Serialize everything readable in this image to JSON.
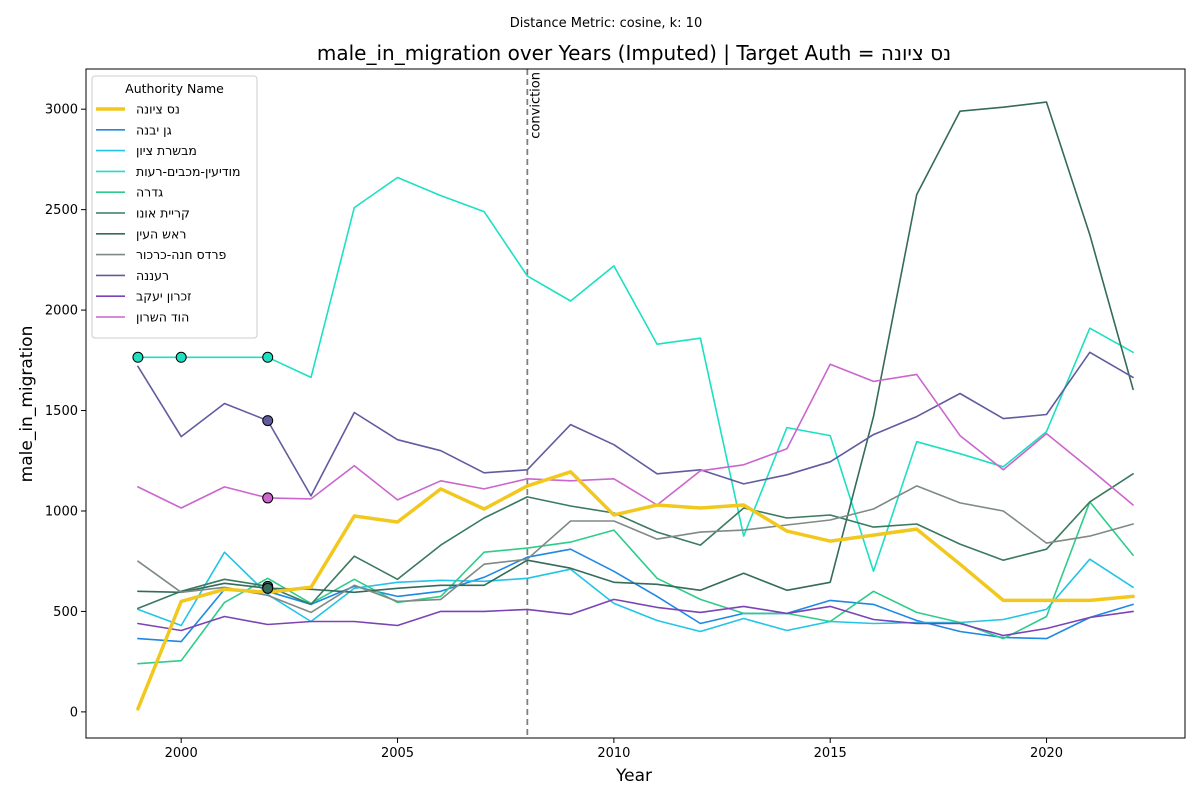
{
  "chart_data": {
    "type": "line",
    "suptitle": "Distance Metric: cosine, k: 10",
    "title": "male_in_migration over Years (Imputed) | Target Auth = נס ציונה",
    "xlabel": "Year",
    "ylabel": "male_in_migration",
    "xlim": [
      1997.8,
      2023.2
    ],
    "ylim": [
      -130,
      3200
    ],
    "x_ticks": [
      2000,
      2005,
      2010,
      2015,
      2020
    ],
    "y_ticks": [
      0,
      500,
      1000,
      1500,
      2000,
      2500,
      3000
    ],
    "x_tick_labels": [
      "2000",
      "2005",
      "2010",
      "2015",
      "2020"
    ],
    "y_tick_labels": [
      "0",
      "500",
      "1000",
      "1500",
      "2000",
      "2500",
      "3000"
    ],
    "grid": false,
    "legend_title": "Authority Name",
    "legend_position": "upper-left",
    "vline": {
      "x": 2008,
      "label": "conviction",
      "color": "#808080",
      "style": "dashed"
    },
    "x": [
      1999,
      2000,
      2001,
      2002,
      2003,
      2004,
      2005,
      2006,
      2007,
      2008,
      2009,
      2010,
      2011,
      2012,
      2013,
      2014,
      2015,
      2016,
      2017,
      2018,
      2019,
      2020,
      2021,
      2022
    ],
    "series": [
      {
        "name": "נס ציונה",
        "color": "#f2c81e",
        "width": 3.5,
        "target": true,
        "imputed_markers": [],
        "values": [
          15,
          550,
          610,
          595,
          620,
          975,
          945,
          1110,
          1010,
          1125,
          1195,
          980,
          1030,
          1015,
          1030,
          900,
          850,
          880,
          910,
          735,
          555,
          555,
          555,
          575
        ]
      },
      {
        "name": "גן יבנה",
        "color": "#1e88e5",
        "width": 1.6,
        "imputed_markers": [],
        "values": [
          365,
          350,
          610,
          600,
          535,
          625,
          575,
          600,
          670,
          770,
          810,
          700,
          575,
          440,
          490,
          490,
          555,
          535,
          455,
          400,
          370,
          365,
          470,
          535
        ]
      },
      {
        "name": "מבשרת ציון",
        "color": "#22c4e8",
        "width": 1.6,
        "imputed_markers": [],
        "values": [
          510,
          430,
          795,
          585,
          450,
          615,
          645,
          655,
          650,
          665,
          710,
          540,
          455,
          400,
          465,
          405,
          450,
          440,
          445,
          445,
          460,
          510,
          760,
          620
        ]
      },
      {
        "name": "מודיעין-מכבים-רעות",
        "color": "#1de0c3",
        "width": 1.6,
        "imputed_markers": [
          1999,
          2000,
          2002
        ],
        "values": [
          1765,
          1765,
          1765,
          1765,
          1665,
          2510,
          2660,
          2570,
          2490,
          2170,
          2045,
          2220,
          1830,
          1860,
          875,
          1415,
          1375,
          700,
          1345,
          1285,
          1220,
          1395,
          1910,
          1790
        ]
      },
      {
        "name": "גדרה",
        "color": "#2ecc8a",
        "width": 1.6,
        "imputed_markers": [],
        "values": [
          240,
          255,
          545,
          665,
          540,
          660,
          545,
          575,
          795,
          815,
          845,
          905,
          665,
          560,
          490,
          490,
          450,
          600,
          495,
          445,
          365,
          475,
          1045,
          780
        ]
      },
      {
        "name": "קריית אונו",
        "color": "#3a7a5e",
        "width": 1.6,
        "imputed_markers": [
          2002
        ],
        "values": [
          515,
          600,
          660,
          625,
          535,
          775,
          660,
          830,
          965,
          1070,
          1025,
          990,
          895,
          830,
          1015,
          965,
          980,
          920,
          935,
          835,
          755,
          810,
          1045,
          1185
        ]
      },
      {
        "name": "ראש העין",
        "color": "#356b5a",
        "width": 1.6,
        "imputed_markers": [
          2002
        ],
        "values": [
          600,
          595,
          640,
          615,
          610,
          595,
          615,
          630,
          630,
          755,
          715,
          645,
          635,
          605,
          690,
          605,
          645,
          1470,
          2575,
          2990,
          3010,
          3035,
          2375,
          1605
        ]
      },
      {
        "name": "פרדס חנה-כרכור",
        "color": "#7f8a85",
        "width": 1.6,
        "imputed_markers": [],
        "values": [
          750,
          595,
          620,
          580,
          495,
          630,
          550,
          560,
          735,
          760,
          950,
          950,
          860,
          895,
          905,
          930,
          955,
          1010,
          1125,
          1040,
          1000,
          840,
          875,
          935
        ]
      },
      {
        "name": "רעננה",
        "color": "#605c9e",
        "width": 1.6,
        "imputed_markers": [
          2002
        ],
        "values": [
          1720,
          1370,
          1535,
          1450,
          1075,
          1490,
          1355,
          1300,
          1190,
          1205,
          1430,
          1330,
          1185,
          1205,
          1135,
          1180,
          1245,
          1380,
          1470,
          1585,
          1460,
          1480,
          1790,
          1665
        ]
      },
      {
        "name": "זכרון יעקב",
        "color": "#7a44b5",
        "width": 1.6,
        "imputed_markers": [],
        "values": [
          440,
          405,
          475,
          435,
          450,
          450,
          430,
          500,
          500,
          510,
          485,
          560,
          520,
          495,
          525,
          490,
          525,
          460,
          440,
          440,
          380,
          415,
          470,
          500
        ]
      },
      {
        "name": "הוד השרון",
        "color": "#cc66cc",
        "width": 1.6,
        "imputed_markers": [
          2002
        ],
        "values": [
          1120,
          1015,
          1120,
          1065,
          1060,
          1225,
          1055,
          1150,
          1110,
          1160,
          1150,
          1160,
          1030,
          1200,
          1230,
          1310,
          1730,
          1645,
          1680,
          1375,
          1205,
          1385,
          1210,
          1030
        ]
      }
    ]
  }
}
